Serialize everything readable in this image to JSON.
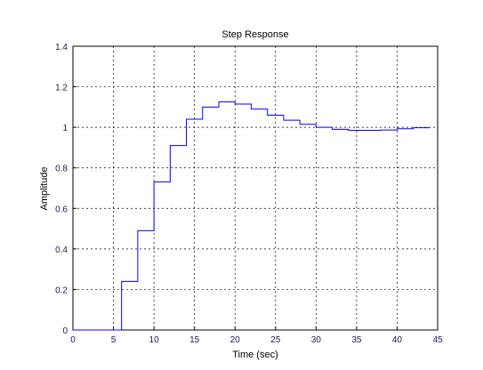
{
  "chart_data": {
    "type": "stairs",
    "title": "Step Response",
    "x_label": "Time (sec)",
    "y_label": "Amplitude",
    "x": [
      0,
      2,
      4,
      6,
      8,
      10,
      12,
      14,
      16,
      18,
      20,
      22,
      24,
      26,
      28,
      30,
      32,
      34,
      36,
      38,
      40,
      42,
      44
    ],
    "series": [
      {
        "color": "#0000ff",
        "values": [
          0,
          0,
          0,
          0.24,
          0.49,
          0.73,
          0.91,
          1.04,
          1.1,
          1.125,
          1.115,
          1.09,
          1.06,
          1.035,
          1.015,
          1.0,
          0.99,
          0.985,
          0.985,
          0.987,
          0.993,
          0.998,
          0.998
        ]
      }
    ],
    "xlim": [
      0,
      45
    ],
    "ylim": [
      0,
      1.4
    ],
    "xticks": [
      0,
      5,
      10,
      15,
      20,
      25,
      30,
      35,
      40,
      45
    ],
    "yticks": [
      0,
      0.2,
      0.4,
      0.6,
      0.8,
      1,
      1.2,
      1.4
    ],
    "grid": true
  }
}
